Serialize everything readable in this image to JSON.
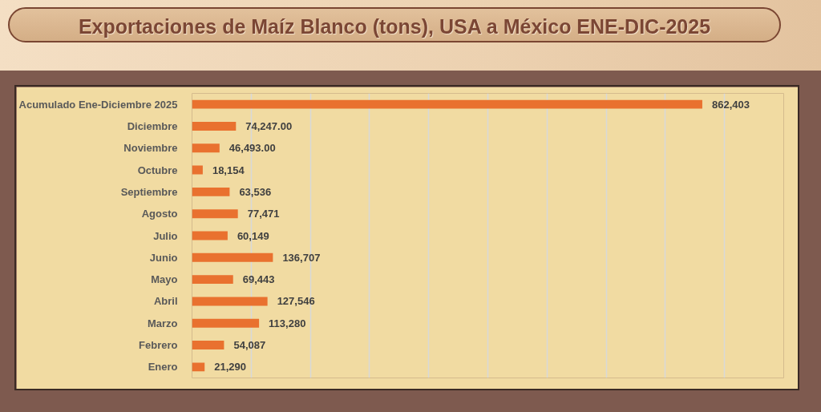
{
  "chart_data": {
    "type": "bar",
    "orientation": "horizontal",
    "title": "Exportaciones de Maíz Blanco (tons), USA a México ENE-DIC-2025",
    "categories": [
      "Acumulado Ene-Diciembre 2025",
      "Diciembre",
      "Noviembre",
      "Octubre",
      "Septiembre",
      "Agosto",
      "Julio",
      "Junio",
      "Mayo",
      "Abril",
      "Marzo",
      "Febrero",
      "Enero"
    ],
    "values": [
      862403,
      74247.0,
      46493.0,
      18154,
      63536,
      77471,
      60149,
      136707,
      69443,
      127546,
      113280,
      54087,
      21290
    ],
    "value_labels": [
      "862,403",
      "74,247.00",
      "46,493.00",
      "18,154",
      "63,536",
      "77,471",
      "60,149",
      "136,707",
      "69,443",
      "127,546",
      "113,280",
      "54,087",
      "21,290"
    ],
    "color": "#e9712f",
    "xlim": [
      0,
      1000000
    ],
    "xticks": [
      0,
      100000,
      200000,
      300000,
      400000,
      500000,
      600000,
      700000,
      800000,
      900000,
      1000000
    ],
    "grid": "x",
    "tick_labels": "y"
  }
}
